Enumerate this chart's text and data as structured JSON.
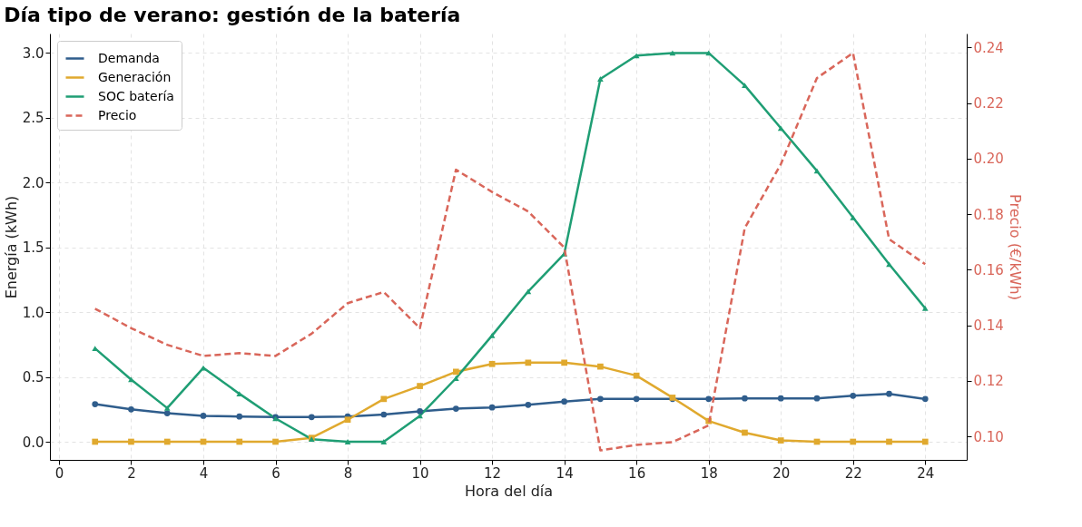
{
  "chart_data": {
    "type": "line",
    "title": "Día tipo de verano: gestión de la batería",
    "xlabel": "Hora del día",
    "ylabel": "Energía (kWh)",
    "y2label": "Precio (€/kWh)",
    "x": [
      1,
      2,
      3,
      4,
      5,
      6,
      7,
      8,
      9,
      10,
      11,
      12,
      13,
      14,
      15,
      16,
      17,
      18,
      19,
      20,
      21,
      22,
      23,
      24
    ],
    "series": [
      {
        "name": "Demanda",
        "color": "#2f5d8c",
        "marker": "circle",
        "line_style": "solid",
        "values": [
          0.29,
          0.25,
          0.22,
          0.2,
          0.195,
          0.19,
          0.19,
          0.195,
          0.21,
          0.235,
          0.255,
          0.265,
          0.285,
          0.31,
          0.33,
          0.33,
          0.33,
          0.33,
          0.335,
          0.335,
          0.335,
          0.355,
          0.37,
          0.33
        ]
      },
      {
        "name": "Generación",
        "color": "#e0a92e",
        "marker": "square",
        "line_style": "solid",
        "values": [
          0,
          0,
          0,
          0,
          0,
          0,
          0.03,
          0.17,
          0.33,
          0.43,
          0.54,
          0.6,
          0.61,
          0.61,
          0.58,
          0.51,
          0.34,
          0.16,
          0.07,
          0.01,
          0,
          0,
          0,
          0
        ]
      },
      {
        "name": "SOC batería",
        "color": "#1f9e74",
        "marker": "triangle",
        "line_style": "solid",
        "values": [
          0.72,
          0.48,
          0.26,
          0.57,
          0.37,
          0.18,
          0.02,
          0,
          0,
          0.2,
          0.49,
          0.82,
          1.16,
          1.45,
          2.8,
          2.98,
          3.0,
          3.0,
          2.75,
          2.42,
          2.09,
          1.73,
          1.37,
          1.03
        ]
      },
      {
        "name": "Precio",
        "color": "#d9665a",
        "marker": "none",
        "line_style": "dashed",
        "axis": "y2",
        "values": [
          0.146,
          0.139,
          0.133,
          0.129,
          0.13,
          0.129,
          0.137,
          0.148,
          0.152,
          0.139,
          0.196,
          0.188,
          0.181,
          0.168,
          0.095,
          0.097,
          0.098,
          0.104,
          0.175,
          0.198,
          0.229,
          0.238,
          0.171,
          0.162
        ]
      }
    ],
    "xlim": [
      -0.25,
      25.15
    ],
    "xticks": [
      0,
      2,
      4,
      6,
      8,
      10,
      12,
      14,
      16,
      18,
      20,
      22,
      24
    ],
    "ylim": [
      -0.14,
      3.15
    ],
    "yticks": [
      {
        "value": 0,
        "label": "0.0"
      },
      0.5,
      {
        "value": 1,
        "label": "1.0"
      },
      1.5,
      {
        "value": 2,
        "label": "2.0"
      },
      2.5,
      {
        "value": 3,
        "label": "3.0"
      }
    ],
    "y2lim": [
      0.0916,
      0.245
    ],
    "y2ticks": [
      {
        "value": 0.1,
        "label": "0.10"
      },
      0.12,
      0.14,
      0.16,
      0.18,
      {
        "value": 0.2,
        "label": "0.20"
      },
      0.22,
      0.24
    ],
    "grid": true,
    "legend": "top left"
  }
}
